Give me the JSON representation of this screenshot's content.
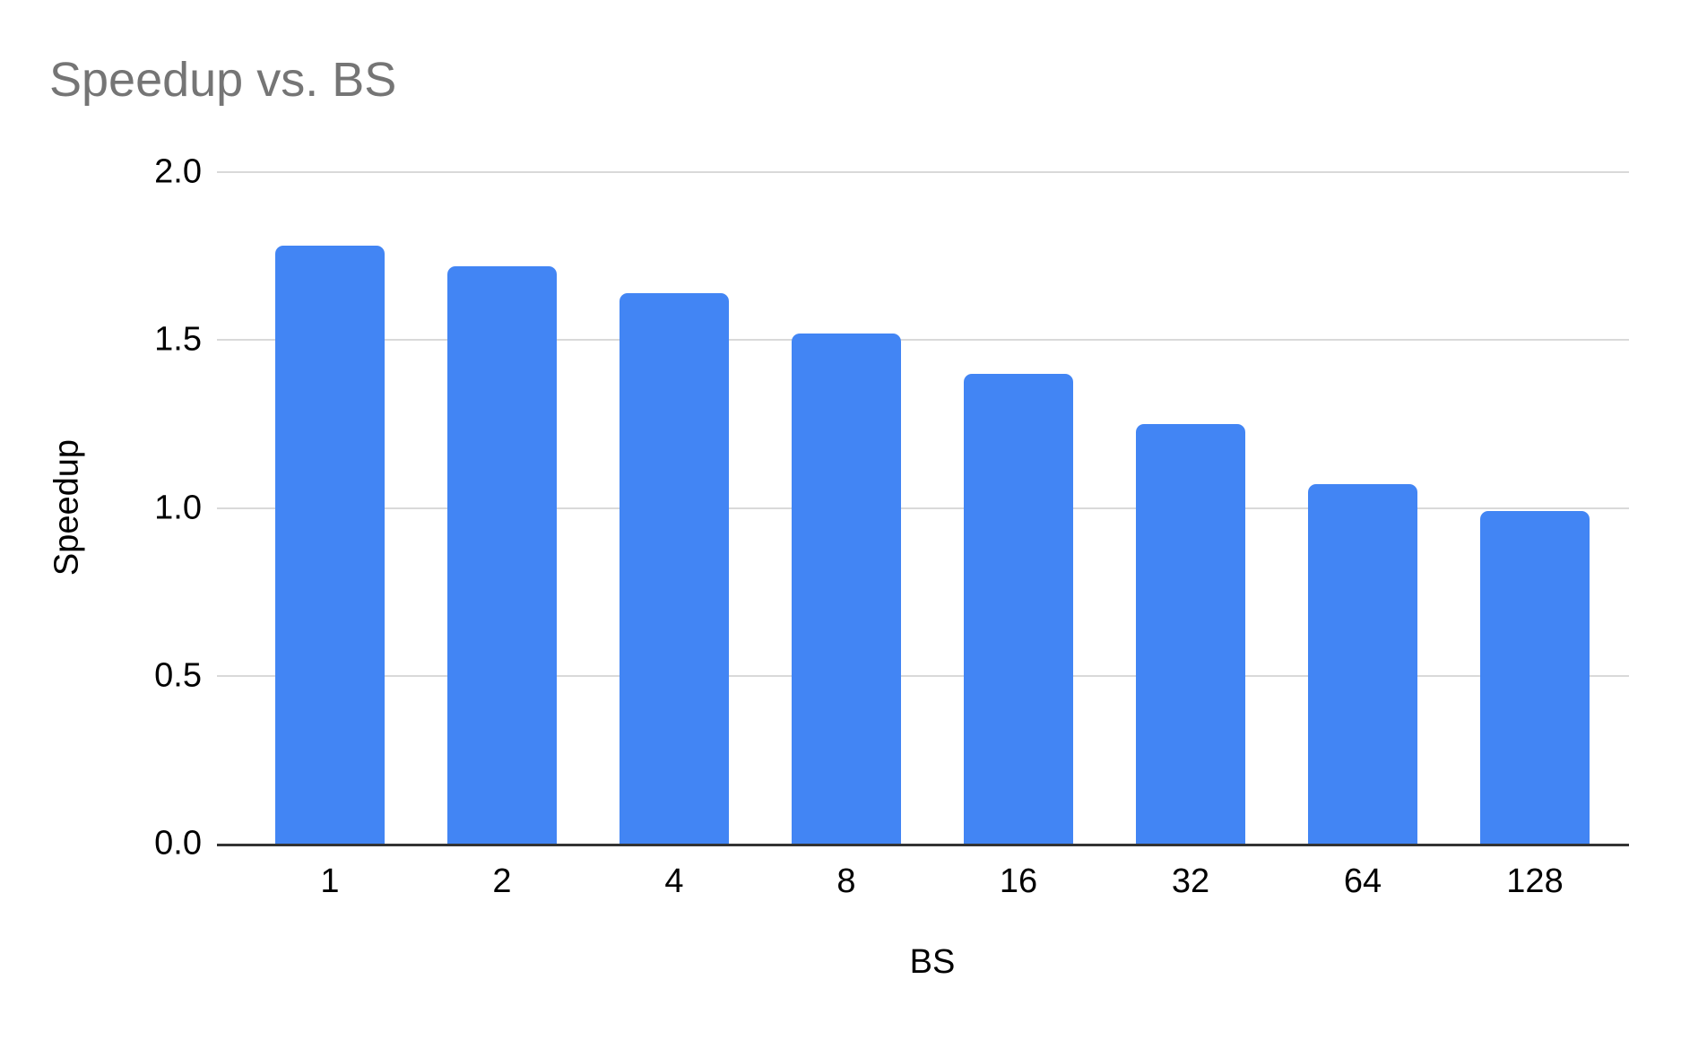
{
  "chart": {
    "title": "Speedup vs. BS",
    "x_axis_title": "BS",
    "y_axis_title": "Speedup"
  },
  "colors": {
    "bar": "#4285F4",
    "title_text": "#757575",
    "axis_text": "#000000",
    "gridline": "#d9d9d9",
    "baseline": "#333333"
  },
  "chart_data": {
    "type": "bar",
    "title": "Speedup vs. BS",
    "xlabel": "BS",
    "ylabel": "Speedup",
    "categories": [
      "1",
      "2",
      "4",
      "8",
      "16",
      "32",
      "64",
      "128"
    ],
    "values": [
      1.78,
      1.72,
      1.64,
      1.52,
      1.4,
      1.25,
      1.07,
      0.99
    ],
    "ylim": [
      0,
      2
    ],
    "y_ticks": [
      "0.0",
      "0.5",
      "1.0",
      "1.5",
      "2.0"
    ],
    "grid": "horizontal-only",
    "legend": "none",
    "bar_color": "#4285F4"
  }
}
